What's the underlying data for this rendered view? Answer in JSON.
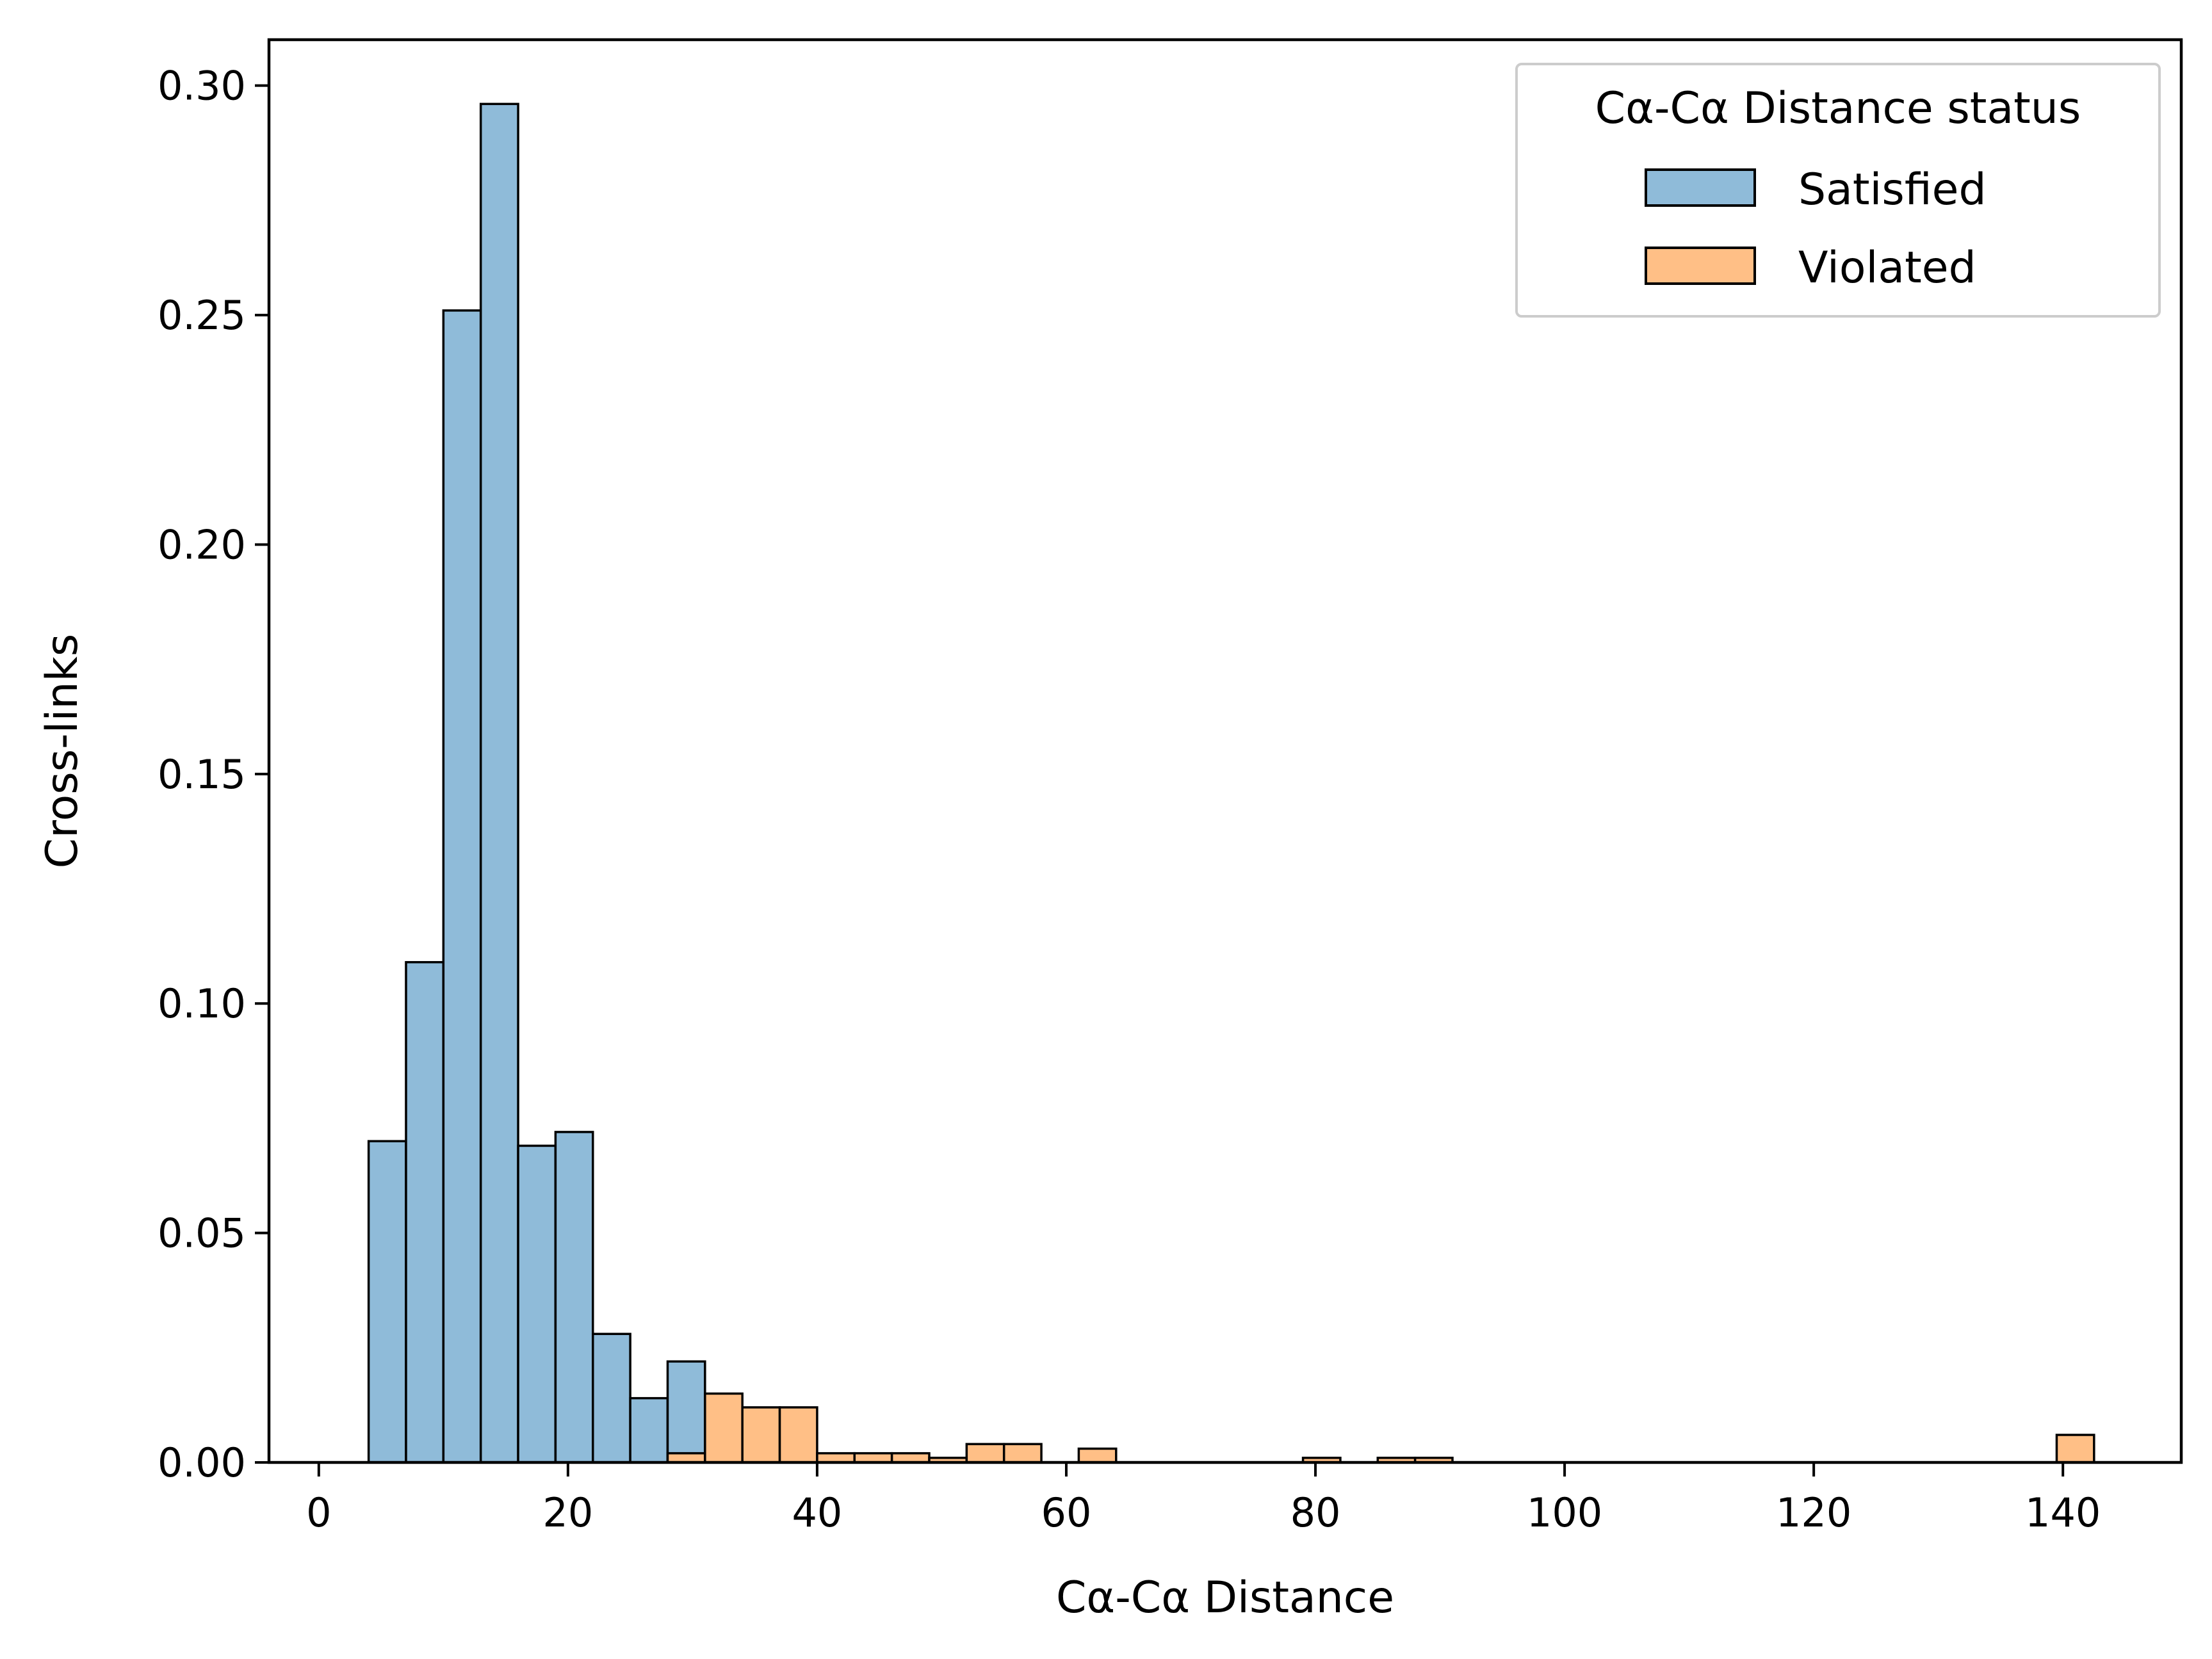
{
  "chart_data": {
    "type": "bar",
    "title": "",
    "xlabel": "Cα-Cα Distance",
    "ylabel": "Cross-links",
    "xlim": [
      -4,
      149.5
    ],
    "ylim": [
      0,
      0.31
    ],
    "xticks": [
      0,
      20,
      40,
      60,
      80,
      100,
      120,
      140
    ],
    "xtick_labels": [
      "0",
      "20",
      "40",
      "60",
      "80",
      "100",
      "120",
      "140"
    ],
    "yticks": [
      0.0,
      0.05,
      0.1,
      0.15,
      0.2,
      0.25,
      0.3
    ],
    "ytick_labels": [
      "0.00",
      "0.05",
      "0.10",
      "0.15",
      "0.20",
      "0.25",
      "0.30"
    ],
    "grid": false,
    "legend": {
      "title": "Cα-Cα Distance status",
      "placement": "top-right",
      "entries": [
        "Satisfied",
        "Violated"
      ]
    },
    "series": [
      {
        "name": "Satisfied",
        "color": "#8fbbd9",
        "bins": [
          {
            "x0": 4.0,
            "x1": 7.0,
            "value": 0.07
          },
          {
            "x0": 7.0,
            "x1": 10.0,
            "value": 0.109
          },
          {
            "x0": 10.0,
            "x1": 13.0,
            "value": 0.251
          },
          {
            "x0": 13.0,
            "x1": 16.0,
            "value": 0.296
          },
          {
            "x0": 16.0,
            "x1": 19.0,
            "value": 0.069
          },
          {
            "x0": 19.0,
            "x1": 22.0,
            "value": 0.072
          },
          {
            "x0": 22.0,
            "x1": 25.0,
            "value": 0.028
          },
          {
            "x0": 25.0,
            "x1": 28.0,
            "value": 0.014
          },
          {
            "x0": 28.0,
            "x1": 31.0,
            "value": 0.022
          }
        ]
      },
      {
        "name": "Violated",
        "color": "#ffbf86",
        "bins": [
          {
            "x0": 28.0,
            "x1": 31.0,
            "value": 0.002
          },
          {
            "x0": 31.0,
            "x1": 34.0,
            "value": 0.015
          },
          {
            "x0": 34.0,
            "x1": 37.0,
            "value": 0.012
          },
          {
            "x0": 37.0,
            "x1": 40.0,
            "value": 0.012
          },
          {
            "x0": 40.0,
            "x1": 43.0,
            "value": 0.002
          },
          {
            "x0": 43.0,
            "x1": 46.0,
            "value": 0.002
          },
          {
            "x0": 46.0,
            "x1": 49.0,
            "value": 0.002
          },
          {
            "x0": 49.0,
            "x1": 52.0,
            "value": 0.001
          },
          {
            "x0": 52.0,
            "x1": 55.0,
            "value": 0.004
          },
          {
            "x0": 55.0,
            "x1": 58.0,
            "value": 0.004
          },
          {
            "x0": 61.0,
            "x1": 64.0,
            "value": 0.003
          },
          {
            "x0": 79.0,
            "x1": 82.0,
            "value": 0.001
          },
          {
            "x0": 85.0,
            "x1": 88.0,
            "value": 0.001
          },
          {
            "x0": 88.0,
            "x1": 91.0,
            "value": 0.001
          },
          {
            "x0": 139.5,
            "x1": 142.5,
            "value": 0.006
          }
        ]
      }
    ]
  }
}
